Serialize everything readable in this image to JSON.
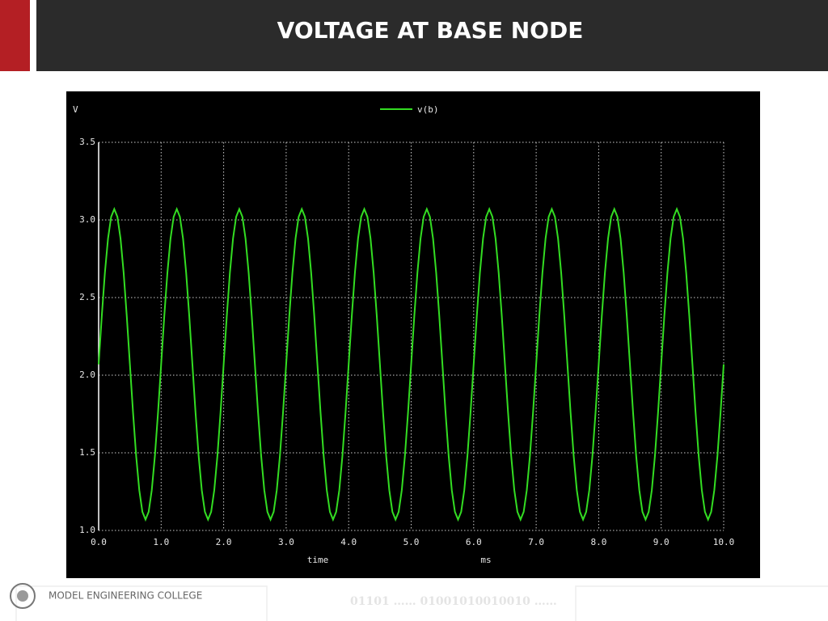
{
  "header": {
    "title": "VOLTAGE AT BASE NODE"
  },
  "footer": {
    "college": "MODEL ENGINEERING COLLEGE",
    "pattern": "01101 …… 01001010010010 ……"
  },
  "chart_data": {
    "type": "line",
    "y_label": "V",
    "x_label": "time",
    "x_unit": "ms",
    "grid": true,
    "xlim": [
      0,
      10
    ],
    "ylim": [
      1,
      3.5
    ],
    "xticks": [
      {
        "value": 0,
        "label": "0.0"
      },
      {
        "value": 1,
        "label": "1.0"
      },
      {
        "value": 2,
        "label": "2.0"
      },
      {
        "value": 3,
        "label": "3.0"
      },
      {
        "value": 4,
        "label": "4.0"
      },
      {
        "value": 5,
        "label": "5.0"
      },
      {
        "value": 6,
        "label": "6.0"
      },
      {
        "value": 7,
        "label": "7.0"
      },
      {
        "value": 8,
        "label": "8.0"
      },
      {
        "value": 9,
        "label": "9.0"
      },
      {
        "value": 10,
        "label": "10.0"
      }
    ],
    "yticks": [
      {
        "value": 1,
        "label": "1.0"
      },
      1.5,
      {
        "value": 2,
        "label": "2.0"
      },
      2.5,
      {
        "value": 3,
        "label": "3.0"
      },
      3.5
    ],
    "x": [
      0,
      0.05,
      0.1,
      0.15,
      0.2,
      0.25,
      0.3,
      0.35,
      0.4,
      0.45,
      0.5,
      0.55,
      0.6,
      0.65,
      0.7,
      0.75,
      0.8,
      0.85,
      0.9,
      0.95,
      1,
      1.05,
      1.1,
      1.15,
      1.2,
      1.25,
      1.3,
      1.35,
      1.4,
      1.45,
      1.5,
      1.55,
      1.6,
      1.65,
      1.7,
      1.75,
      1.8,
      1.85,
      1.9,
      1.95,
      2,
      2.05,
      2.1,
      2.15,
      2.2,
      2.25,
      2.3,
      2.35,
      2.4,
      2.45,
      2.5,
      2.55,
      2.6,
      2.65,
      2.7,
      2.75,
      2.8,
      2.85,
      2.9,
      2.95,
      3,
      3.05,
      3.1,
      3.15,
      3.2,
      3.25,
      3.3,
      3.35,
      3.4,
      3.45,
      3.5,
      3.55,
      3.6,
      3.65,
      3.7,
      3.75,
      3.8,
      3.85,
      3.9,
      3.95,
      4,
      4.05,
      4.1,
      4.15,
      4.2,
      4.25,
      4.3,
      4.35,
      4.4,
      4.45,
      4.5,
      4.55,
      4.6,
      4.65,
      4.7,
      4.75,
      4.8,
      4.85,
      4.9,
      4.95,
      5,
      5.05,
      5.1,
      5.15,
      5.2,
      5.25,
      5.3,
      5.35,
      5.4,
      5.45,
      5.5,
      5.55,
      5.6,
      5.65,
      5.7,
      5.75,
      5.8,
      5.85,
      5.9,
      5.95,
      6,
      6.05,
      6.1,
      6.15,
      6.2,
      6.25,
      6.3,
      6.35,
      6.4,
      6.45,
      6.5,
      6.55,
      6.6,
      6.65,
      6.7,
      6.75,
      6.8,
      6.85,
      6.9,
      6.95,
      7,
      7.05,
      7.1,
      7.15,
      7.2,
      7.25,
      7.3,
      7.35,
      7.4,
      7.45,
      7.5,
      7.55,
      7.6,
      7.65,
      7.7,
      7.75,
      7.8,
      7.85,
      7.9,
      7.95,
      8,
      8.05,
      8.1,
      8.15,
      8.2,
      8.25,
      8.3,
      8.35,
      8.4,
      8.45,
      8.5,
      8.55,
      8.6,
      8.65,
      8.7,
      8.75,
      8.8,
      8.85,
      8.9,
      8.95,
      9,
      9.05,
      9.1,
      9.15,
      9.2,
      9.25,
      9.3,
      9.35,
      9.4,
      9.45,
      9.5,
      9.55,
      9.6,
      9.65,
      9.7,
      9.75,
      9.8,
      9.85,
      9.9,
      9.95,
      10
    ],
    "series": [
      {
        "name": "v(b)",
        "color": "#33dd22",
        "values": [
          2.07,
          2.38,
          2.66,
          2.88,
          3.02,
          3.07,
          3.02,
          2.88,
          2.66,
          2.38,
          2.07,
          1.76,
          1.48,
          1.26,
          1.12,
          1.07,
          1.12,
          1.26,
          1.48,
          1.76,
          2.07,
          2.38,
          2.66,
          2.88,
          3.02,
          3.07,
          3.02,
          2.88,
          2.66,
          2.38,
          2.07,
          1.76,
          1.48,
          1.26,
          1.12,
          1.07,
          1.12,
          1.26,
          1.48,
          1.76,
          2.07,
          2.38,
          2.66,
          2.88,
          3.02,
          3.07,
          3.02,
          2.88,
          2.66,
          2.38,
          2.07,
          1.76,
          1.48,
          1.26,
          1.12,
          1.07,
          1.12,
          1.26,
          1.48,
          1.76,
          2.07,
          2.38,
          2.66,
          2.88,
          3.02,
          3.07,
          3.02,
          2.88,
          2.66,
          2.38,
          2.07,
          1.76,
          1.48,
          1.26,
          1.12,
          1.07,
          1.12,
          1.26,
          1.48,
          1.76,
          2.07,
          2.38,
          2.66,
          2.88,
          3.02,
          3.07,
          3.02,
          2.88,
          2.66,
          2.38,
          2.07,
          1.76,
          1.48,
          1.26,
          1.12,
          1.07,
          1.12,
          1.26,
          1.48,
          1.76,
          2.07,
          2.38,
          2.66,
          2.88,
          3.02,
          3.07,
          3.02,
          2.88,
          2.66,
          2.38,
          2.07,
          1.76,
          1.48,
          1.26,
          1.12,
          1.07,
          1.12,
          1.26,
          1.48,
          1.76,
          2.07,
          2.38,
          2.66,
          2.88,
          3.02,
          3.07,
          3.02,
          2.88,
          2.66,
          2.38,
          2.07,
          1.76,
          1.48,
          1.26,
          1.12,
          1.07,
          1.12,
          1.26,
          1.48,
          1.76,
          2.07,
          2.38,
          2.66,
          2.88,
          3.02,
          3.07,
          3.02,
          2.88,
          2.66,
          2.38,
          2.07,
          1.76,
          1.48,
          1.26,
          1.12,
          1.07,
          1.12,
          1.26,
          1.48,
          1.76,
          2.07,
          2.38,
          2.66,
          2.88,
          3.02,
          3.07,
          3.02,
          2.88,
          2.66,
          2.38,
          2.07,
          1.76,
          1.48,
          1.26,
          1.12,
          1.07,
          1.12,
          1.26,
          1.48,
          1.76,
          2.07,
          2.38,
          2.66,
          2.88,
          3.02,
          3.07,
          3.02,
          2.88,
          2.66,
          2.38,
          2.07,
          1.76,
          1.48,
          1.26,
          1.12,
          1.07,
          1.12,
          1.26,
          1.48,
          1.76,
          2.07
        ]
      }
    ]
  }
}
